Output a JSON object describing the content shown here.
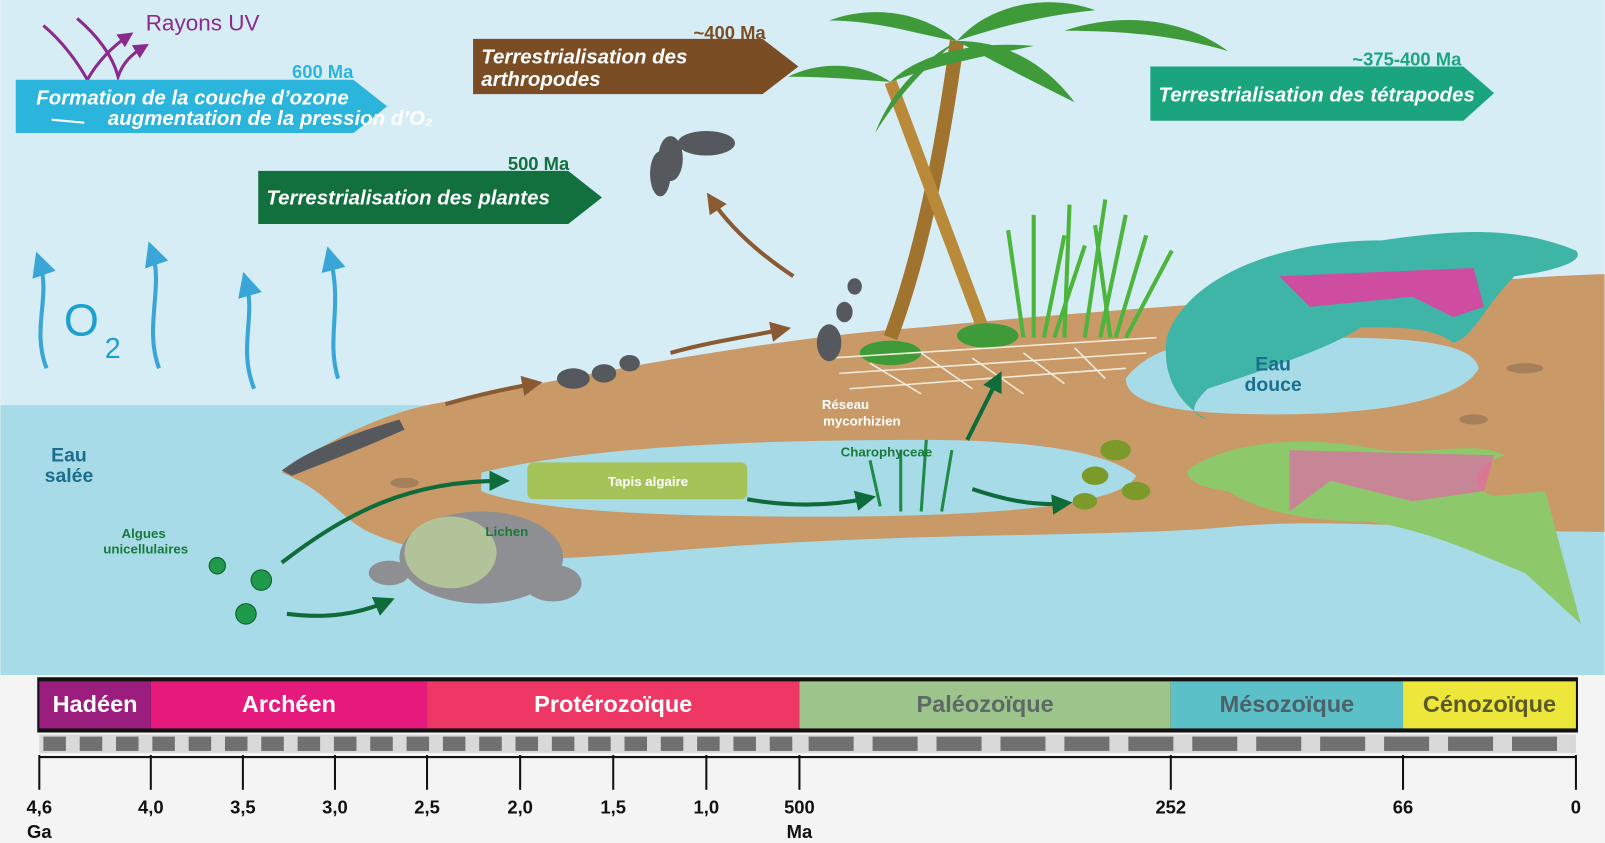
{
  "uv_label": "Rayons UV",
  "ozone": {
    "date": "600 Ma",
    "title": "Formation de la couche d’ozone",
    "subtitle": "augmentation de la pression d’O₂"
  },
  "arthropods": {
    "date": "~400 Ma",
    "title": [
      "Terrestrialisation des",
      "arthropodes"
    ]
  },
  "plants": {
    "date": "500 Ma",
    "title": "Terrestrialisation des plantes"
  },
  "tetrapods": {
    "date": "~375-400 Ma",
    "title": "Terrestrialisation des tétrapodes"
  },
  "o2": {
    "symbol": "O",
    "index": "2"
  },
  "labels": {
    "salt_water": [
      "Eau",
      "salée"
    ],
    "fresh_water": [
      "Eau",
      "douce"
    ],
    "algae": [
      "Algues",
      "unicellulaires"
    ],
    "lichen": "Lichen",
    "algal_mat": "Tapis algaire",
    "charophyceae": "Charophyceae",
    "mycorrhiza": [
      "Réseau",
      "mycorhizien"
    ]
  },
  "timeline": {
    "eras": [
      "Hadéen",
      "Archéen",
      "Protérozoïque",
      "Paléozoïque",
      "Mésozoïque",
      "Cénozoïque"
    ],
    "ticks": [
      "4,6",
      "4,0",
      "3,5",
      "3,0",
      "2,5",
      "2,0",
      "1,5",
      "1,0",
      "500",
      "252",
      "66",
      "0"
    ],
    "units": [
      "Ga",
      "Ma"
    ]
  }
}
